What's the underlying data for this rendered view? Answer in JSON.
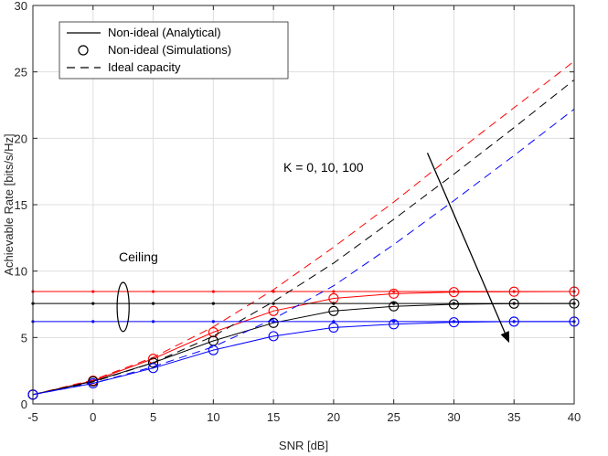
{
  "chart_data": {
    "type": "line",
    "xlabel": "SNR [dB]",
    "ylabel": "Achievable Rate [bits/s/Hz]",
    "xlim": [
      -5,
      40
    ],
    "ylim": [
      0,
      30
    ],
    "xticks": [
      -5,
      0,
      5,
      10,
      15,
      20,
      25,
      30,
      35,
      40
    ],
    "yticks": [
      0,
      5,
      10,
      15,
      20,
      25,
      30
    ],
    "grid": true,
    "legend_position": "top-left",
    "legend": [
      {
        "label": "Non-ideal (Analytical)",
        "style": "solid-line"
      },
      {
        "label": "Non-ideal (Simulations)",
        "style": "circle-marker"
      },
      {
        "label": "Ideal capacity",
        "style": "dashed-line"
      }
    ],
    "x": [
      -5,
      0,
      5,
      10,
      15,
      20,
      25,
      30,
      35,
      40
    ],
    "series": [
      {
        "color": "#ff0000",
        "analytical": [
          0.7,
          1.75,
          3.4,
          5.4,
          7.0,
          7.95,
          8.3,
          8.42,
          8.45,
          8.46
        ],
        "simulations": [
          0.7,
          1.75,
          3.4,
          5.4,
          7.0,
          7.95,
          8.3,
          8.42,
          8.45,
          8.46
        ],
        "ideal": [
          0.7,
          1.8,
          3.5,
          5.8,
          8.6,
          11.8,
          15.2,
          18.8,
          22.3,
          25.8
        ],
        "ceiling": 8.46
      },
      {
        "color": "#000000",
        "analytical": [
          0.7,
          1.7,
          3.1,
          4.75,
          6.1,
          7.0,
          7.35,
          7.5,
          7.55,
          7.56
        ],
        "simulations": [
          0.7,
          1.7,
          3.1,
          4.75,
          6.1,
          7.0,
          7.35,
          7.5,
          7.55,
          7.56
        ],
        "ideal": [
          0.7,
          1.65,
          3.1,
          5.1,
          7.7,
          10.6,
          13.9,
          17.3,
          20.8,
          24.4
        ],
        "ceiling": 7.56
      },
      {
        "color": "#0000ff",
        "analytical": [
          0.7,
          1.55,
          2.7,
          4.05,
          5.1,
          5.75,
          6.0,
          6.15,
          6.2,
          6.2
        ],
        "simulations": [
          0.7,
          1.55,
          2.7,
          4.05,
          5.1,
          5.75,
          6.0,
          6.15,
          6.2,
          6.2
        ],
        "ideal": [
          0.7,
          1.55,
          2.8,
          4.3,
          6.4,
          8.9,
          12.0,
          15.3,
          18.7,
          22.2
        ],
        "ceiling": 6.2
      }
    ],
    "annotations": [
      {
        "text": "K = 0, 10, 100",
        "arrow_from": [
          27.8,
          18.9
        ],
        "arrow_to": [
          34.6,
          4.6
        ]
      },
      {
        "text": "Ceiling",
        "ellipse_center": [
          2.5,
          7.3
        ],
        "ellipse_semi_axes": [
          0.5,
          1.85
        ]
      }
    ]
  }
}
